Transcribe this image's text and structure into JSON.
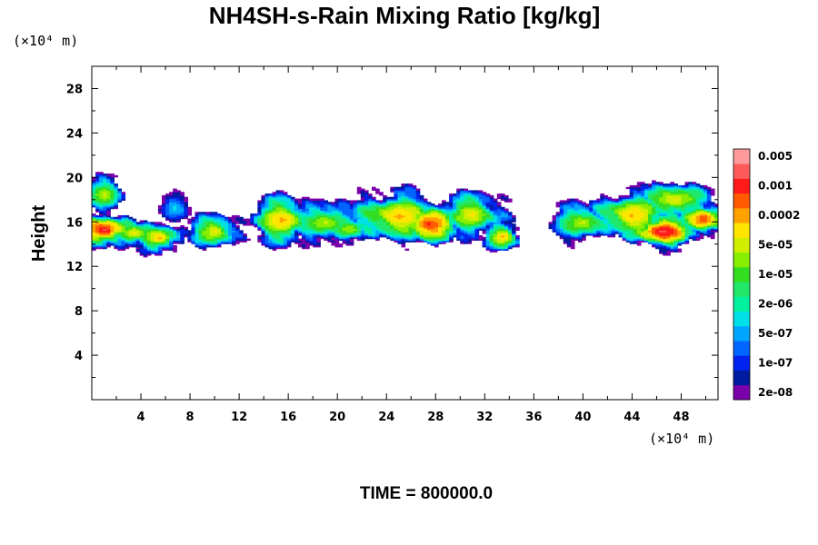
{
  "chart_data": {
    "type": "contour",
    "title": "NH4SH-s-Rain Mixing Ratio [kg/kg]",
    "ylabel": "Height",
    "y_unit": "(×10⁴ m)",
    "x_unit": "(×10⁴ m)",
    "x_ticks": [
      4,
      8,
      12,
      16,
      20,
      24,
      28,
      32,
      36,
      40,
      44,
      48
    ],
    "y_ticks": [
      4,
      8,
      12,
      16,
      20,
      24,
      28
    ],
    "xlim": [
      0,
      51
    ],
    "ylim": [
      0,
      30
    ],
    "time_text": "TIME = 800000.0",
    "colorbar": {
      "colors": [
        "#7a00aa",
        "#001aa0",
        "#0022ee",
        "#0066ff",
        "#00a6ff",
        "#00e0e8",
        "#00f0a0",
        "#22e86a",
        "#33dd22",
        "#88ee00",
        "#d0ee00",
        "#ffe600",
        "#ffa200",
        "#ff5a00",
        "#ff1a1a",
        "#ff5a5a",
        "#ff9a9a"
      ],
      "labels": [
        {
          "text": "2e-08",
          "level": 1
        },
        {
          "text": "1e-07",
          "level": 3
        },
        {
          "text": "5e-07",
          "level": 5
        },
        {
          "text": "2e-06",
          "level": 7
        },
        {
          "text": "1e-05",
          "level": 9
        },
        {
          "text": "5e-05",
          "level": 11
        },
        {
          "text": "0.0002",
          "level": 13
        },
        {
          "text": "0.001",
          "level": 15
        },
        {
          "text": "0.005",
          "level": 17
        }
      ]
    },
    "cloud_features": [
      {
        "x": 1.0,
        "y": 18.5,
        "rx": 1.8,
        "ry": 1.6,
        "peak": 10
      },
      {
        "x": 1.0,
        "y": 15.3,
        "rx": 2.6,
        "ry": 1.6,
        "peak": 15
      },
      {
        "x": 3.5,
        "y": 15.0,
        "rx": 2.2,
        "ry": 1.3,
        "peak": 11
      },
      {
        "x": 5.5,
        "y": 14.6,
        "rx": 2.0,
        "ry": 1.4,
        "peak": 12
      },
      {
        "x": 6.8,
        "y": 17.3,
        "rx": 1.3,
        "ry": 1.2,
        "peak": 5
      },
      {
        "x": 10.0,
        "y": 15.2,
        "rx": 2.2,
        "ry": 1.6,
        "peak": 11
      },
      {
        "x": 15.5,
        "y": 16.2,
        "rx": 3.0,
        "ry": 2.3,
        "peak": 12
      },
      {
        "x": 19.0,
        "y": 16.0,
        "rx": 2.8,
        "ry": 2.0,
        "peak": 10
      },
      {
        "x": 21.0,
        "y": 15.4,
        "rx": 1.8,
        "ry": 1.3,
        "peak": 10
      },
      {
        "x": 25.0,
        "y": 16.5,
        "rx": 4.2,
        "ry": 2.4,
        "peak": 12
      },
      {
        "x": 27.5,
        "y": 15.8,
        "rx": 3.2,
        "ry": 1.8,
        "peak": 14
      },
      {
        "x": 31.0,
        "y": 16.7,
        "rx": 2.8,
        "ry": 2.1,
        "peak": 11
      },
      {
        "x": 33.5,
        "y": 14.7,
        "rx": 1.7,
        "ry": 1.3,
        "peak": 12
      },
      {
        "x": 40.0,
        "y": 16.0,
        "rx": 2.8,
        "ry": 1.8,
        "peak": 10
      },
      {
        "x": 44.0,
        "y": 16.6,
        "rx": 3.5,
        "ry": 2.3,
        "peak": 12
      },
      {
        "x": 46.5,
        "y": 15.2,
        "rx": 3.2,
        "ry": 1.7,
        "peak": 15
      },
      {
        "x": 47.5,
        "y": 18.0,
        "rx": 3.2,
        "ry": 1.8,
        "peak": 11
      },
      {
        "x": 49.8,
        "y": 16.3,
        "rx": 2.0,
        "ry": 1.8,
        "peak": 14
      }
    ]
  }
}
